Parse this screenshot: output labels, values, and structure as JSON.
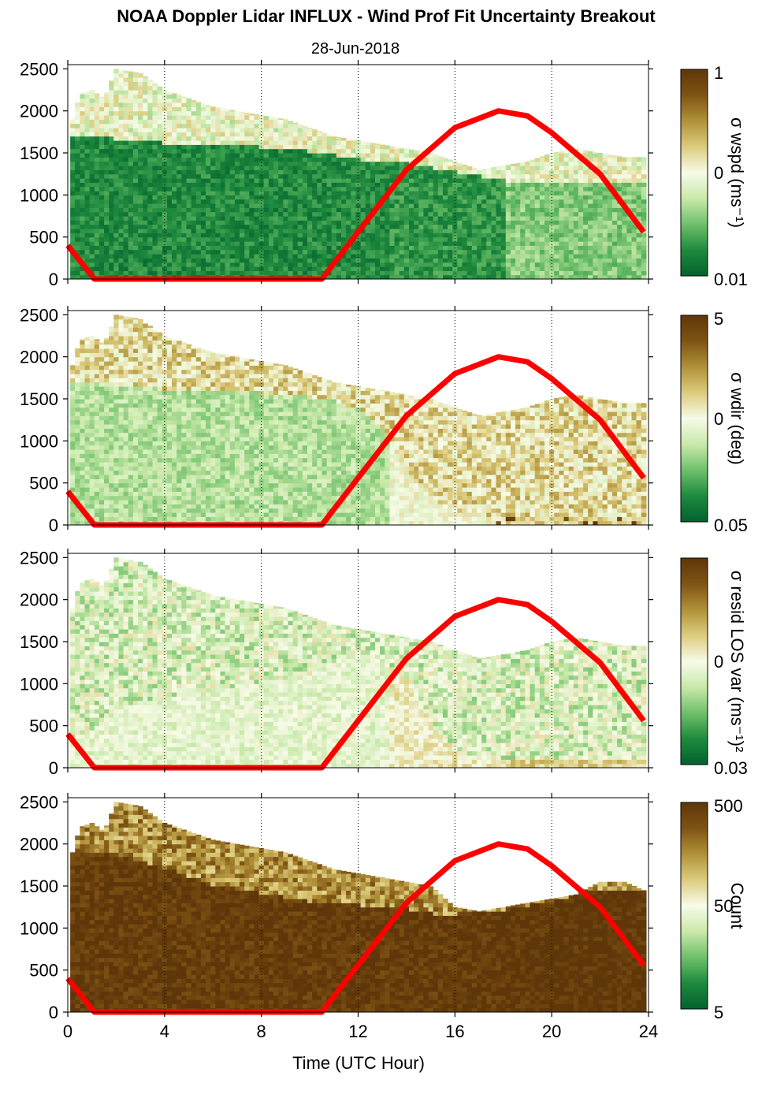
{
  "title": "NOAA Doppler Lidar INFLUX - Wind Prof Fit Uncertainty Breakout",
  "subtitle": "28-Jun-2018",
  "chart_data": {
    "type": "heatmap",
    "xlabel": "Time (UTC Hour)",
    "xlim": [
      0,
      24
    ],
    "x_ticks": [
      "0",
      "4",
      "8",
      "12",
      "16",
      "20",
      "24"
    ],
    "ylim": [
      0,
      2550
    ],
    "y_ticks": [
      "0",
      "500",
      "1000",
      "1500",
      "2000",
      "2500"
    ],
    "overlay_line": {
      "description": "red curve",
      "color": "#ff0000",
      "points": [
        [
          0,
          400
        ],
        [
          1.1,
          0
        ],
        [
          10.5,
          0
        ],
        [
          12,
          560
        ],
        [
          14,
          1300
        ],
        [
          16,
          1800
        ],
        [
          17.8,
          2000
        ],
        [
          19,
          1940
        ],
        [
          20,
          1740
        ],
        [
          22,
          1250
        ],
        [
          23.8,
          560
        ]
      ]
    },
    "colormap": [
      "#04622e",
      "#1e8a3e",
      "#6fc06a",
      "#c9e9aa",
      "#f7fbe8",
      "#dccc7e",
      "#b09138",
      "#7e5414",
      "#5f3609"
    ],
    "panels": [
      {
        "id": "p1",
        "cbar_label": "σ wspd (ms⁻¹)",
        "cbar_ticks": [
          "1",
          "0",
          "0.01"
        ],
        "top_boundary": [
          [
            0.1,
            1800
          ],
          [
            0.5,
            2200
          ],
          [
            1,
            2250
          ],
          [
            1.5,
            2150
          ],
          [
            2,
            2500
          ],
          [
            3,
            2450
          ],
          [
            4,
            2250
          ],
          [
            5,
            2150
          ],
          [
            6,
            2050
          ],
          [
            7,
            2000
          ],
          [
            8,
            1950
          ],
          [
            9,
            1900
          ],
          [
            10,
            1800
          ],
          [
            11,
            1700
          ],
          [
            12,
            1650
          ],
          [
            13,
            1600
          ],
          [
            14,
            1550
          ],
          [
            15,
            1500
          ],
          [
            16,
            1400
          ],
          [
            17,
            1300
          ],
          [
            18,
            1350
          ],
          [
            19,
            1400
          ],
          [
            20,
            1500
          ],
          [
            21,
            1550
          ],
          [
            22,
            1500
          ],
          [
            23,
            1450
          ],
          [
            23.8,
            1450
          ]
        ],
        "dark_boundary": [
          [
            0,
            1700
          ],
          [
            2,
            1650
          ],
          [
            4,
            1600
          ],
          [
            6,
            1600
          ],
          [
            8,
            1550
          ],
          [
            10,
            1500
          ],
          [
            11,
            1450
          ],
          [
            12,
            1400
          ],
          [
            13,
            1400
          ],
          [
            14,
            1350
          ],
          [
            15,
            1300
          ],
          [
            16,
            1250
          ],
          [
            17,
            1200
          ],
          [
            18,
            1150
          ],
          [
            20,
            1150
          ],
          [
            22,
            1150
          ],
          [
            23.8,
            1150
          ]
        ],
        "lower_level": [
          0.12,
          0.15,
          0.28
        ],
        "upper_level": 0.45,
        "hot_fraction": 0
      },
      {
        "id": "p2",
        "cbar_label": "σ wdir (deg)",
        "cbar_ticks": [
          "5",
          "0",
          "0.05"
        ],
        "top_boundary": [
          [
            0.1,
            1800
          ],
          [
            0.5,
            2200
          ],
          [
            1,
            2250
          ],
          [
            1.5,
            2150
          ],
          [
            2,
            2500
          ],
          [
            3,
            2450
          ],
          [
            4,
            2250
          ],
          [
            5,
            2150
          ],
          [
            6,
            2050
          ],
          [
            7,
            2000
          ],
          [
            8,
            1950
          ],
          [
            9,
            1900
          ],
          [
            10,
            1800
          ],
          [
            11,
            1700
          ],
          [
            12,
            1650
          ],
          [
            13,
            1600
          ],
          [
            14,
            1550
          ],
          [
            15,
            1500
          ],
          [
            16,
            1400
          ],
          [
            17,
            1300
          ],
          [
            18,
            1350
          ],
          [
            19,
            1400
          ],
          [
            20,
            1500
          ],
          [
            21,
            1550
          ],
          [
            22,
            1500
          ],
          [
            23,
            1450
          ],
          [
            23.8,
            1450
          ]
        ],
        "dark_boundary": [
          [
            0,
            1700
          ],
          [
            2,
            1650
          ],
          [
            4,
            1600
          ],
          [
            6,
            1600
          ],
          [
            8,
            1550
          ],
          [
            10,
            1500
          ],
          [
            11,
            1450
          ],
          [
            12,
            1350
          ],
          [
            13,
            1100
          ],
          [
            14,
            600
          ],
          [
            15,
            300
          ],
          [
            16,
            150
          ],
          [
            17,
            100
          ],
          [
            20,
            100
          ],
          [
            23.8,
            100
          ]
        ],
        "lower_level": [
          0.35,
          0.5,
          0.62
        ],
        "upper_level": 0.55,
        "hot_fraction": 0.06
      },
      {
        "id": "p3",
        "cbar_label": "σ resid LOS var (ms⁻¹)²",
        "cbar_ticks": [
          "0",
          "0.03"
        ],
        "top_boundary": [
          [
            0.1,
            1800
          ],
          [
            0.5,
            2200
          ],
          [
            1,
            2250
          ],
          [
            1.5,
            2150
          ],
          [
            2,
            2500
          ],
          [
            3,
            2450
          ],
          [
            4,
            2250
          ],
          [
            5,
            2150
          ],
          [
            6,
            2050
          ],
          [
            7,
            2000
          ],
          [
            8,
            1950
          ],
          [
            9,
            1900
          ],
          [
            10,
            1800
          ],
          [
            11,
            1700
          ],
          [
            12,
            1650
          ],
          [
            13,
            1600
          ],
          [
            14,
            1550
          ],
          [
            15,
            1500
          ],
          [
            16,
            1400
          ],
          [
            17,
            1300
          ],
          [
            18,
            1350
          ],
          [
            19,
            1400
          ],
          [
            20,
            1500
          ],
          [
            21,
            1550
          ],
          [
            22,
            1500
          ],
          [
            23,
            1450
          ],
          [
            23.8,
            1450
          ]
        ],
        "dark_boundary": [
          [
            0,
            300
          ],
          [
            1,
            400
          ],
          [
            2,
            700
          ],
          [
            4,
            800
          ],
          [
            6,
            900
          ],
          [
            8,
            1000
          ],
          [
            10,
            1100
          ],
          [
            11,
            1250
          ],
          [
            12,
            1350
          ],
          [
            13,
            1300
          ],
          [
            14,
            1000
          ],
          [
            15,
            500
          ],
          [
            16,
            200
          ],
          [
            17,
            100
          ],
          [
            20,
            100
          ],
          [
            23.8,
            100
          ]
        ],
        "lower_level": [
          0.45,
          0.55,
          0.62
        ],
        "upper_level": 0.4,
        "hot_fraction": 0.02
      },
      {
        "id": "p4",
        "cbar_label": "Count",
        "cbar_ticks": [
          "500",
          "50",
          "5"
        ],
        "top_boundary": [
          [
            0.1,
            1800
          ],
          [
            0.5,
            2200
          ],
          [
            1,
            2250
          ],
          [
            1.5,
            2150
          ],
          [
            2,
            2500
          ],
          [
            3,
            2450
          ],
          [
            4,
            2250
          ],
          [
            5,
            2150
          ],
          [
            6,
            2050
          ],
          [
            7,
            2000
          ],
          [
            8,
            1950
          ],
          [
            9,
            1900
          ],
          [
            10,
            1800
          ],
          [
            11,
            1700
          ],
          [
            12,
            1650
          ],
          [
            13,
            1600
          ],
          [
            14,
            1550
          ],
          [
            15,
            1500
          ],
          [
            16,
            1250
          ],
          [
            17,
            1200
          ],
          [
            18,
            1250
          ],
          [
            19,
            1300
          ],
          [
            20,
            1350
          ],
          [
            21,
            1400
          ],
          [
            22,
            1550
          ],
          [
            23,
            1550
          ],
          [
            23.8,
            1450
          ]
        ],
        "dark_boundary": [
          [
            0,
            1900
          ],
          [
            2,
            1850
          ],
          [
            4,
            1700
          ],
          [
            6,
            1500
          ],
          [
            8,
            1400
          ],
          [
            10,
            1300
          ],
          [
            12,
            1250
          ],
          [
            14,
            1200
          ],
          [
            15,
            1150
          ],
          [
            16,
            1150
          ],
          [
            18,
            1200
          ],
          [
            20,
            1300
          ],
          [
            22,
            1450
          ],
          [
            23.8,
            1400
          ]
        ],
        "lower_level": [
          0.97,
          0.98,
          1.0
        ],
        "upper_level": 0.72,
        "hot_fraction": 0
      }
    ]
  }
}
